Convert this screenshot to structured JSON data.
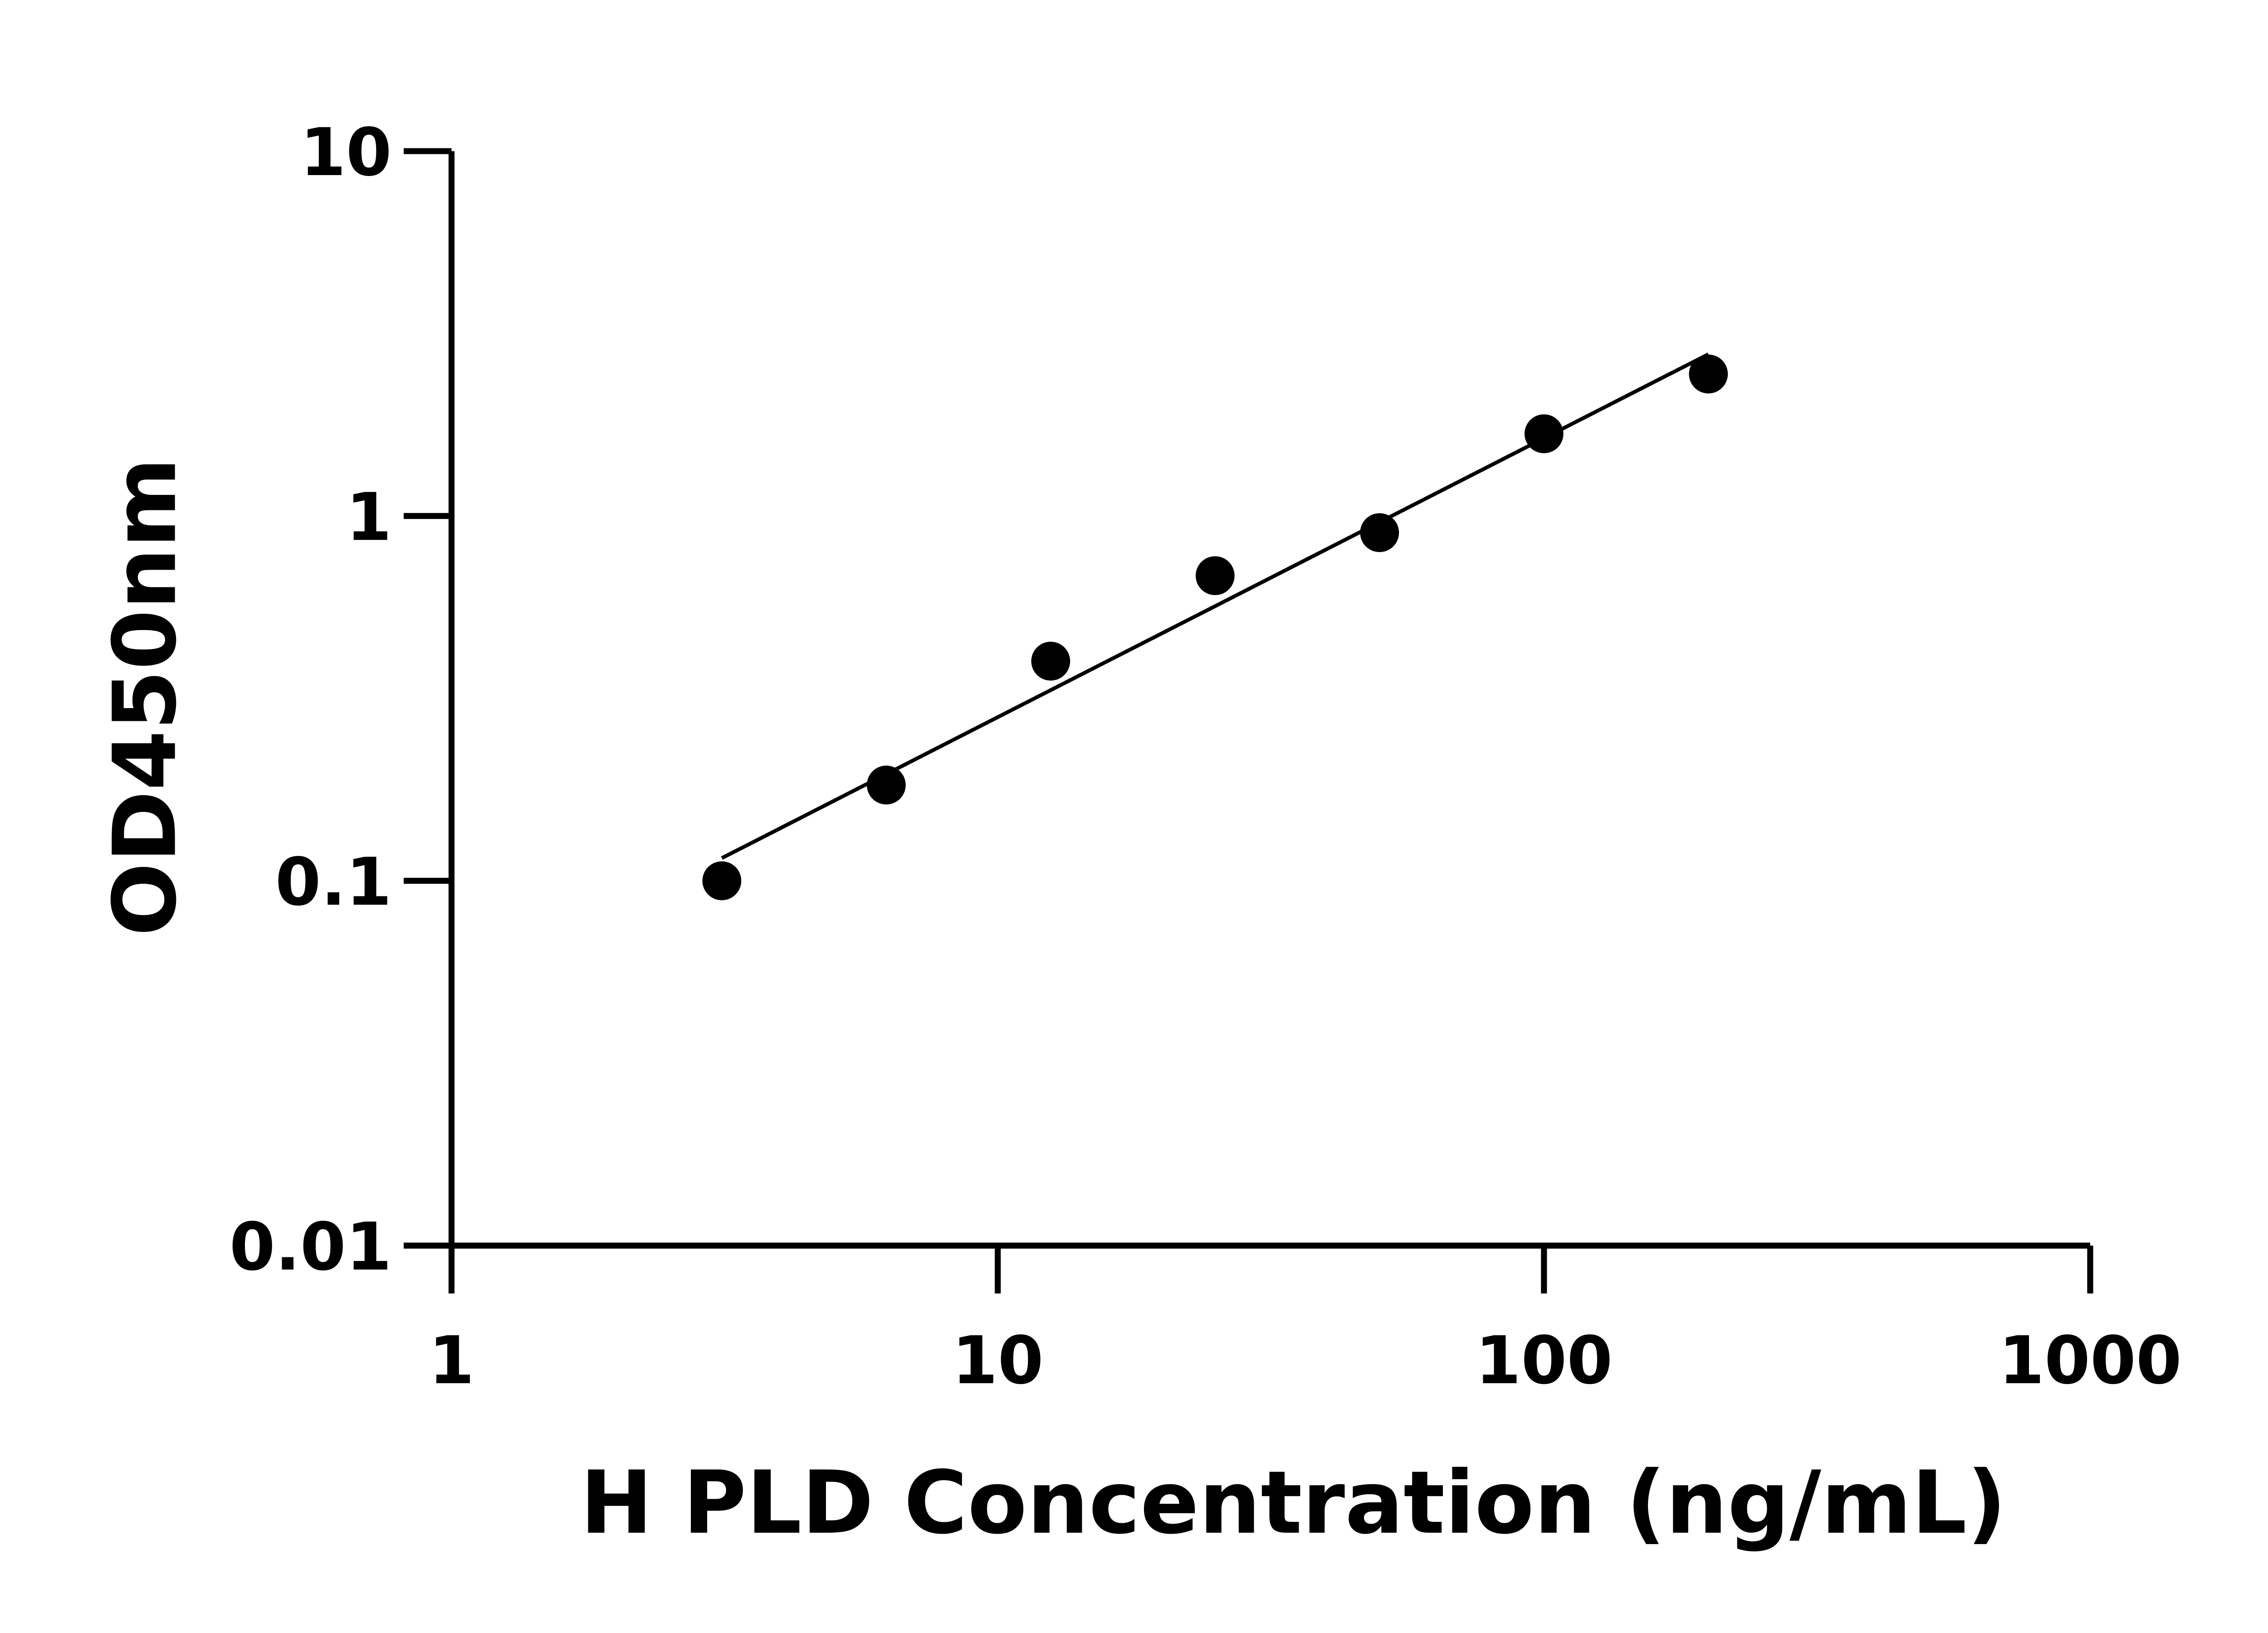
{
  "chart_data": {
    "type": "scatter",
    "xlabel": "H PLD Concentration (ng/mL)",
    "ylabel": "OD450nm",
    "xscale": "log",
    "yscale": "log",
    "xlim": [
      1,
      1000
    ],
    "ylim": [
      0.01,
      10
    ],
    "xticks": [
      "1",
      "10",
      "100",
      "1000"
    ],
    "yticks": [
      "0.01",
      "0.1",
      "1",
      "10"
    ],
    "grid": false,
    "x": [
      3.125,
      6.25,
      12.5,
      25,
      50,
      100,
      200
    ],
    "y": [
      0.1,
      0.183,
      0.4,
      0.686,
      0.9,
      1.68,
      2.45
    ],
    "fit_line": true,
    "marker_color": "#000000"
  }
}
